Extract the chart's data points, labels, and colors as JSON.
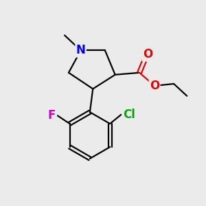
{
  "bg_color": "#ebebeb",
  "atom_colors": {
    "N": "#0000ee",
    "O": "#ee0000",
    "F": "#cc00cc",
    "Cl": "#00aa00",
    "C": "#000000"
  },
  "bond_color": "#000000",
  "bond_width": 1.6,
  "font_size_atom": 12
}
